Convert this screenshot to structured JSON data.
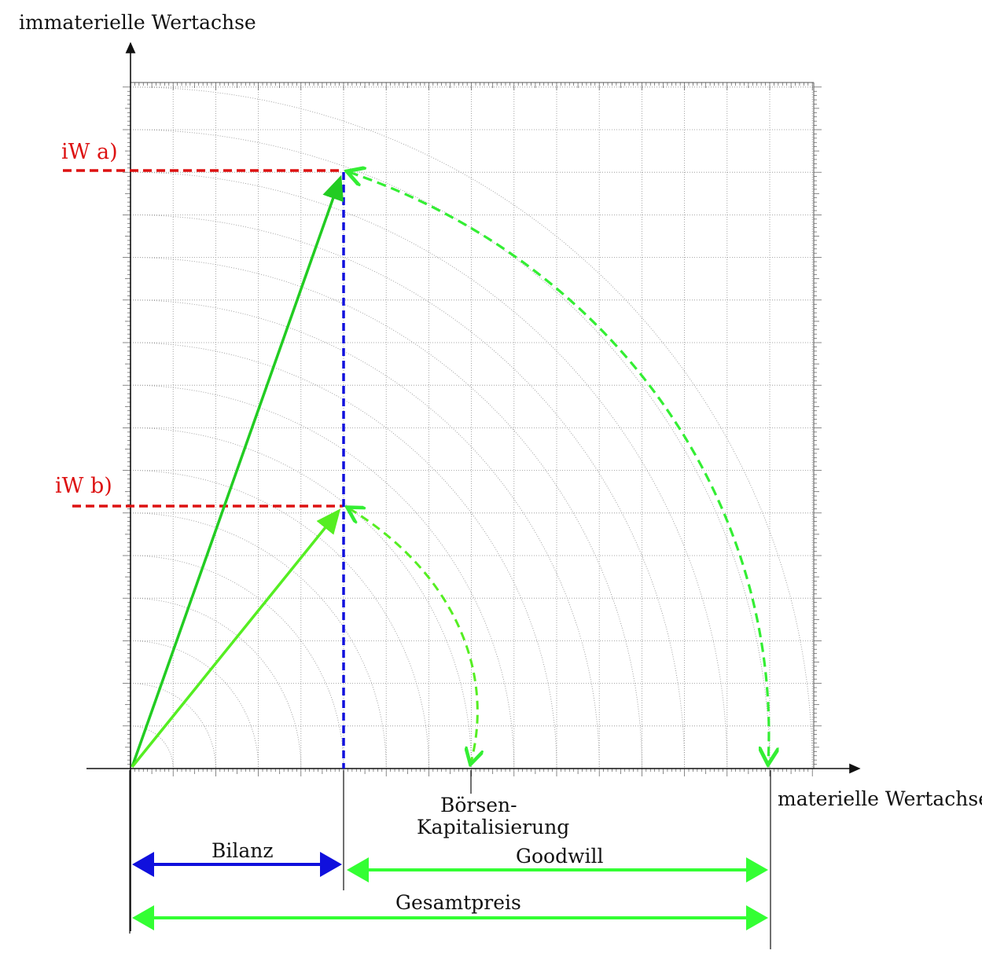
{
  "labels": {
    "y_axis": "immaterielle Wertachse",
    "x_axis": "materielle Wertachse",
    "iw_a": "iW a)",
    "iw_b": "iW b)",
    "boersen_line1": "Börsen-",
    "boersen_line2": "Kapitalisierung",
    "bilanz": "Bilanz",
    "goodwill": "Goodwill",
    "gesamtpreis": "Gesamtpreis"
  },
  "colors": {
    "grid": "#8f8f8f",
    "axis": "#111111",
    "red": "#dd1111",
    "blue": "#1010dd",
    "green": "#22cc22",
    "light_green": "#55ee22",
    "bright_green": "#33ff33"
  }
}
